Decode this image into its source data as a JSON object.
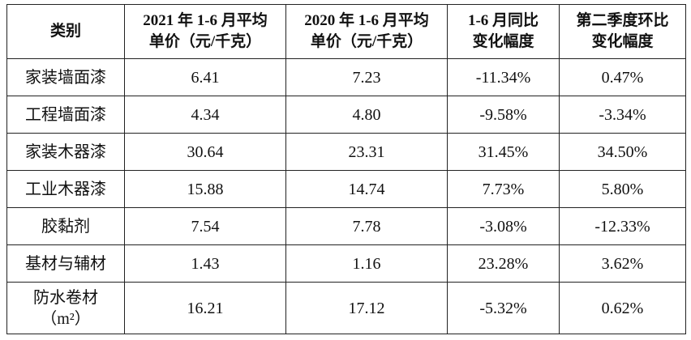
{
  "table": {
    "header": [
      [
        "类别"
      ],
      [
        "2021 年 1-6 月平均",
        "单价（元/千克）"
      ],
      [
        "2020 年 1-6 月平均",
        "单价（元/千克）"
      ],
      [
        "1-6 月同比",
        "变化幅度"
      ],
      [
        "第二季度环比",
        "变化幅度"
      ]
    ],
    "rows": [
      [
        [
          "家装墙面漆"
        ],
        "6.41",
        "7.23",
        "-11.34%",
        "0.47%"
      ],
      [
        [
          "工程墙面漆"
        ],
        "4.34",
        "4.80",
        "-9.58%",
        "-3.34%"
      ],
      [
        [
          "家装木器漆"
        ],
        "30.64",
        "23.31",
        "31.45%",
        "34.50%"
      ],
      [
        [
          "工业木器漆"
        ],
        "15.88",
        "14.74",
        "7.73%",
        "5.80%"
      ],
      [
        [
          "胶黏剂"
        ],
        "7.54",
        "7.78",
        "-3.08%",
        "-12.33%"
      ],
      [
        [
          "基材与辅材"
        ],
        "1.43",
        "1.16",
        "23.28%",
        "3.62%"
      ],
      [
        [
          "防水卷材",
          "（m²）"
        ],
        "16.21",
        "17.12",
        "-5.32%",
        "0.62%"
      ]
    ]
  }
}
